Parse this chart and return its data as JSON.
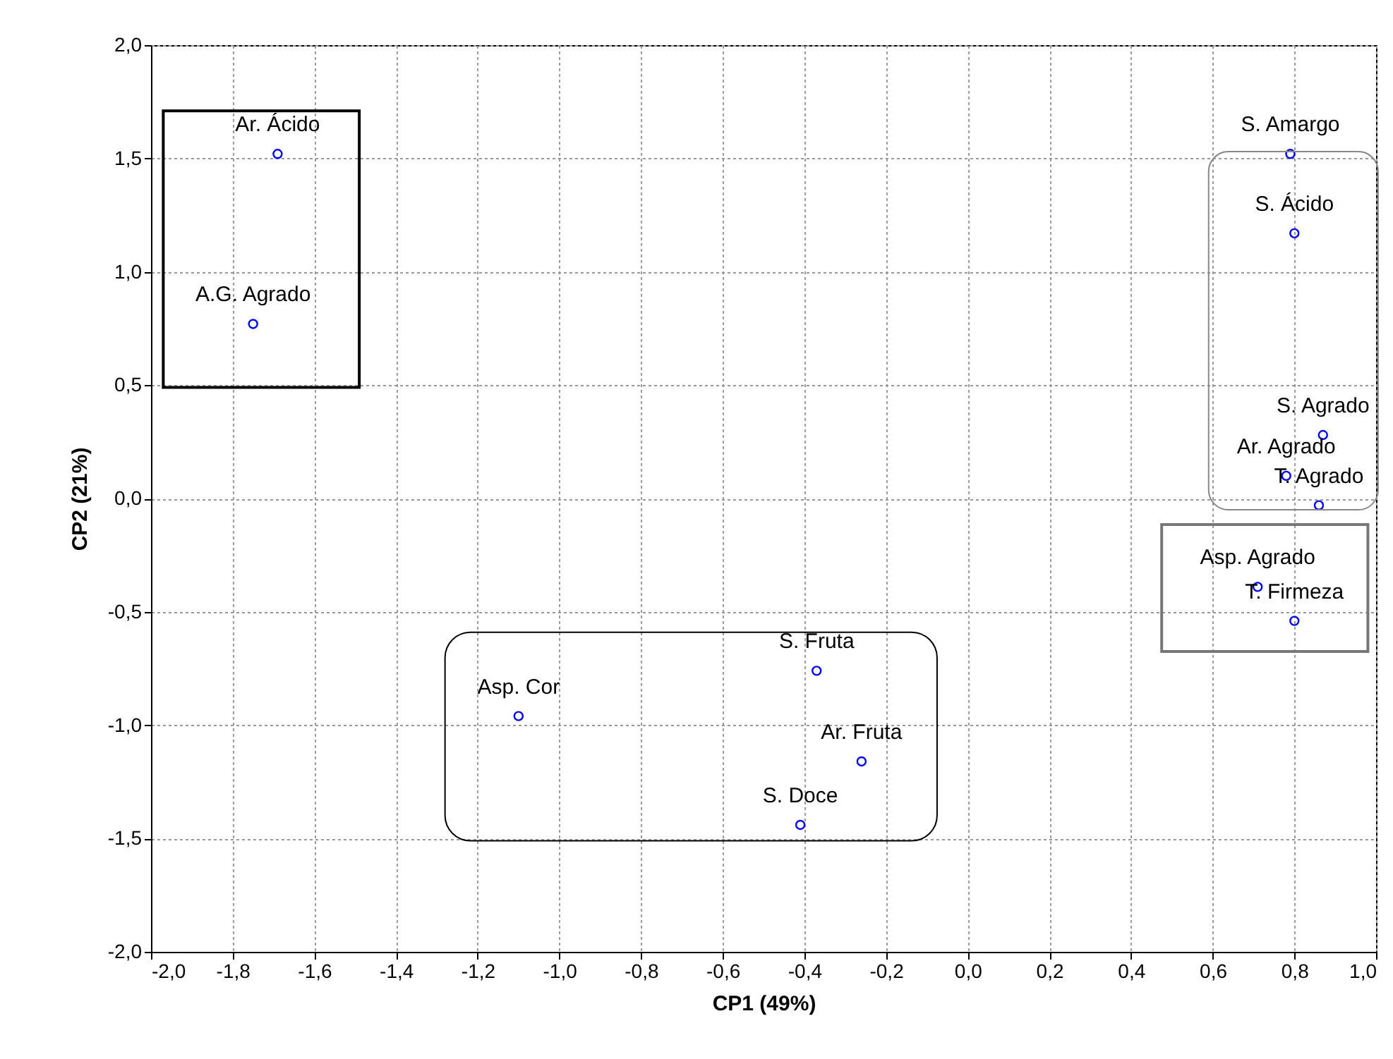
{
  "chart_data": {
    "type": "scatter",
    "xlabel": "CP1  (49%)",
    "ylabel": "CP2  (21%)",
    "x": [
      -1.69,
      -1.75,
      0.79,
      0.8,
      0.87,
      0.78,
      0.86,
      0.71,
      0.8,
      -0.37,
      -1.1,
      -0.26,
      -0.41
    ],
    "series": [
      {
        "color": "#0000ff",
        "values": [
          1.52,
          0.77,
          1.52,
          1.17,
          0.28,
          0.1,
          -0.03,
          -0.39,
          -0.54,
          -0.76,
          -0.96,
          -1.16,
          -1.44
        ]
      }
    ],
    "annotations": [
      {
        "text": "Ar. Ácido",
        "x": -1.69,
        "y": 1.52
      },
      {
        "text": "A.G. Agrado",
        "x": -1.75,
        "y": 0.77
      },
      {
        "text": "S. Amargo",
        "x": 0.79,
        "y": 1.52
      },
      {
        "text": "S. Ácido",
        "x": 0.8,
        "y": 1.17
      },
      {
        "text": "S. Agrado",
        "x": 0.87,
        "y": 0.28
      },
      {
        "text": "Ar. Agrado",
        "x": 0.78,
        "y": 0.1
      },
      {
        "text": "T. Agrado",
        "x": 0.86,
        "y": -0.03
      },
      {
        "text": "Asp. Agrado",
        "x": 0.71,
        "y": -0.39
      },
      {
        "text": "T. Firmeza",
        "x": 0.8,
        "y": -0.54
      },
      {
        "text": "S. Fruta",
        "x": -0.37,
        "y": -0.76
      },
      {
        "text": "Asp. Cor",
        "x": -1.1,
        "y": -0.96
      },
      {
        "text": "Ar. Fruta",
        "x": -0.26,
        "y": -1.16
      },
      {
        "text": "S. Doce",
        "x": -0.41,
        "y": -1.44
      }
    ],
    "xlim": [
      -2.0,
      1.0
    ],
    "xticks": [
      {
        "value": -2.0,
        "label": "-2,0"
      },
      {
        "value": -1.8,
        "label": "-1,8"
      },
      {
        "value": -1.6,
        "label": "-1,6"
      },
      {
        "value": -1.4,
        "label": "-1,4"
      },
      {
        "value": -1.2,
        "label": "-1,2"
      },
      {
        "value": -1.0,
        "label": "-1,0"
      },
      {
        "value": -0.8,
        "label": "-0,8"
      },
      {
        "value": -0.6,
        "label": "-0,6"
      },
      {
        "value": -0.4,
        "label": "-0,4"
      },
      {
        "value": -0.2,
        "label": "-0,2"
      },
      {
        "value": 0,
        "label": "0,0"
      },
      {
        "value": 0.2,
        "label": "0,2"
      },
      {
        "value": 0.4,
        "label": "0,4"
      },
      {
        "value": 0.6,
        "label": "0,6"
      },
      {
        "value": 0.8,
        "label": "0,8"
      },
      {
        "value": 1.0,
        "label": "1,0"
      }
    ],
    "ylim": [
      -2.0,
      2.0
    ],
    "yticks": [
      {
        "value": -2.0,
        "label": "-2,0"
      },
      {
        "value": -1.5,
        "label": "-1,5"
      },
      {
        "value": -1.0,
        "label": "-1,0"
      },
      {
        "value": -0.5,
        "label": "-0,5"
      },
      {
        "value": 0,
        "label": "0,0"
      },
      {
        "value": 0.5,
        "label": "0,5"
      },
      {
        "value": 1.0,
        "label": "1,0"
      },
      {
        "value": 1.5,
        "label": "1,5"
      },
      {
        "value": 2.0,
        "label": "2,0"
      }
    ],
    "grid": true,
    "marker": "circle",
    "legend": false
  }
}
